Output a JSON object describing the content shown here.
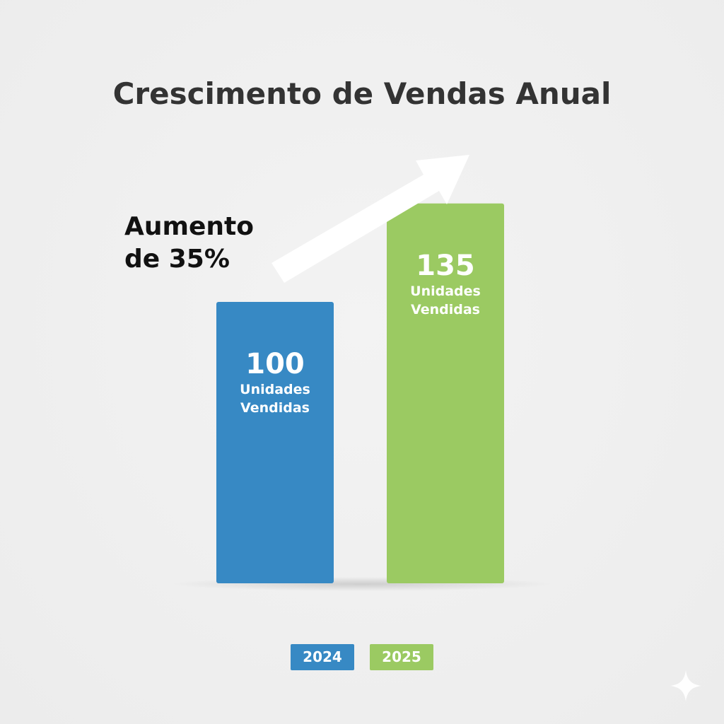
{
  "colors": {
    "series_2024": "#3789c4",
    "series_2025": "#9bca62",
    "title": "#333333",
    "annotation": "#111111",
    "arrow": "#ffffff"
  },
  "chart_data": {
    "type": "bar",
    "title": "Crescimento de Vendas Anual",
    "categories": [
      "2024",
      "2025"
    ],
    "values": [
      100,
      135
    ],
    "value_labels": [
      "100",
      "135"
    ],
    "unit_label_line1": "Unidades",
    "unit_label_line2": "Vendidas",
    "ylim": [
      0,
      160
    ],
    "grid": false,
    "legend": {
      "placement": "bottom",
      "entries": [
        "2024",
        "2025"
      ]
    },
    "annotation": {
      "line1": "Aumento",
      "line2": "de 35%"
    }
  },
  "icons": {
    "corner_mark": "sparkle-icon",
    "growth_arrow": "arrow-up-right-icon"
  }
}
